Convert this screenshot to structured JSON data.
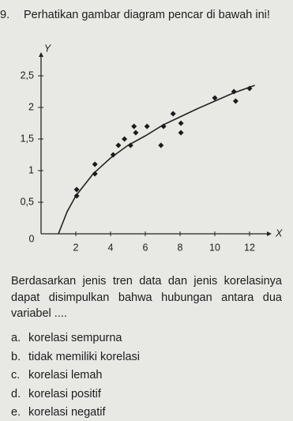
{
  "question": {
    "number": "9.",
    "text": "Perhatikan gambar diagram pencar di bawah ini!"
  },
  "chart_data": {
    "type": "scatter",
    "x_label": "X",
    "y_label": "Y",
    "origin_label": "0",
    "x": [
      2.05,
      2.05,
      3.1,
      3.1,
      4.15,
      4.45,
      4.8,
      5.15,
      5.35,
      5.45,
      6.1,
      6.9,
      7.05,
      7.6,
      8.05,
      8.05,
      10,
      11.1,
      11.2,
      12
    ],
    "y": [
      0.7,
      0.6,
      1.1,
      0.95,
      1.25,
      1.4,
      1.5,
      1.4,
      1.7,
      1.6,
      1.7,
      1.4,
      1.7,
      1.9,
      1.75,
      1.6,
      2.15,
      2.25,
      2.1,
      2.3
    ],
    "color": "#1a1a1a",
    "trend_line": {
      "x": [
        1,
        1.5,
        2,
        3,
        4,
        5,
        6,
        7,
        8,
        9,
        10,
        11,
        12.3
      ],
      "y": [
        0,
        0.35,
        0.6,
        0.95,
        1.2,
        1.4,
        1.55,
        1.72,
        1.85,
        1.98,
        2.1,
        2.22,
        2.35
      ]
    },
    "xlim": [
      0,
      13
    ],
    "ylim": [
      0,
      2.8
    ],
    "xticks": [
      2,
      4,
      6,
      8,
      10,
      12
    ],
    "yticks": [
      {
        "value": 0.5,
        "label": "0,5"
      },
      1,
      {
        "value": 1.5,
        "label": "1,5"
      },
      2,
      {
        "value": 2.5,
        "label": "2,5"
      }
    ]
  },
  "body": "Berdasarkan jenis tren data dan jenis korelasinya dapat disimpulkan bahwa hubungan antara dua variabel ....",
  "options": [
    {
      "letter": "a.",
      "text": "korelasi sempurna"
    },
    {
      "letter": "b.",
      "text": "tidak memiliki korelasi"
    },
    {
      "letter": "c.",
      "text": "korelasi lemah"
    },
    {
      "letter": "d.",
      "text": "korelasi positif"
    },
    {
      "letter": "e.",
      "text": "korelasi negatif"
    }
  ]
}
